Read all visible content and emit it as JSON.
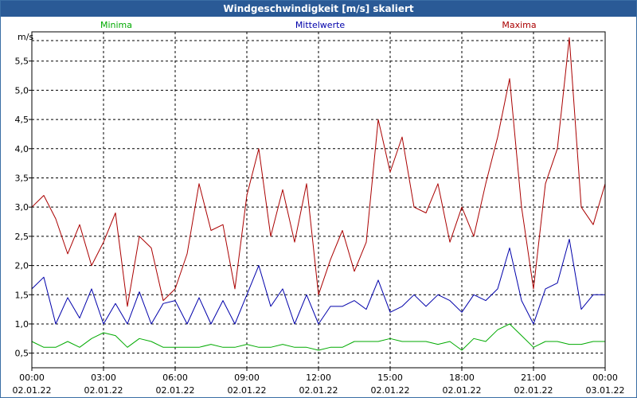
{
  "chart_data": {
    "type": "line",
    "title": "Windgeschwindigkeit [m/s] skaliert",
    "ylabel": "m/s",
    "ylim": [
      0.25,
      6.0
    ],
    "y_ticks": [
      {
        "value": 0.5,
        "label": "0,5"
      },
      {
        "value": 1.0,
        "label": "1,0"
      },
      {
        "value": 1.5,
        "label": "1,5"
      },
      {
        "value": 2.0,
        "label": "2,0"
      },
      {
        "value": 2.5,
        "label": "2,5"
      },
      {
        "value": 3.0,
        "label": "3,0"
      },
      {
        "value": 3.5,
        "label": "3,5"
      },
      {
        "value": 4.0,
        "label": "4,0"
      },
      {
        "value": 4.5,
        "label": "4,5"
      },
      {
        "value": 5.0,
        "label": "5,0"
      },
      {
        "value": 5.5,
        "label": "5,5"
      }
    ],
    "x_range_hours": [
      0,
      24
    ],
    "x_ticks": [
      {
        "hour": 0,
        "time": "00:00",
        "date": "02.01.22"
      },
      {
        "hour": 3,
        "time": "03:00",
        "date": "02.01.22"
      },
      {
        "hour": 6,
        "time": "06:00",
        "date": "02.01.22"
      },
      {
        "hour": 9,
        "time": "09:00",
        "date": "02.01.22"
      },
      {
        "hour": 12,
        "time": "12:00",
        "date": "02.01.22"
      },
      {
        "hour": 15,
        "time": "15:00",
        "date": "02.01.22"
      },
      {
        "hour": 18,
        "time": "18:00",
        "date": "02.01.22"
      },
      {
        "hour": 21,
        "time": "21:00",
        "date": "02.01.22"
      },
      {
        "hour": 24,
        "time": "00:00",
        "date": "03.01.22"
      }
    ],
    "grid": true,
    "series": [
      {
        "name": "Minima",
        "color": "#00aa00",
        "x_hours": [
          0,
          0.5,
          1,
          1.5,
          2,
          2.5,
          3,
          3.5,
          4,
          4.5,
          5,
          5.5,
          6,
          6.5,
          7,
          7.5,
          8,
          8.5,
          9,
          9.5,
          10,
          10.5,
          11,
          11.5,
          12,
          12.5,
          13,
          13.5,
          14,
          14.5,
          15,
          15.5,
          16,
          16.5,
          17,
          17.5,
          18,
          18.5,
          19,
          19.5,
          20,
          20.5,
          21,
          21.5,
          22,
          22.5,
          23,
          23.5,
          24
        ],
        "values": [
          0.7,
          0.6,
          0.6,
          0.7,
          0.6,
          0.75,
          0.85,
          0.8,
          0.6,
          0.75,
          0.7,
          0.6,
          0.6,
          0.6,
          0.6,
          0.65,
          0.6,
          0.6,
          0.65,
          0.6,
          0.6,
          0.65,
          0.6,
          0.6,
          0.55,
          0.6,
          0.6,
          0.7,
          0.7,
          0.7,
          0.75,
          0.7,
          0.7,
          0.7,
          0.65,
          0.7,
          0.55,
          0.75,
          0.7,
          0.9,
          1.0,
          0.8,
          0.6,
          0.7,
          0.7,
          0.65,
          0.65,
          0.7,
          0.7
        ]
      },
      {
        "name": "Mittelwerte",
        "color": "#0000aa",
        "x_hours": [
          0,
          0.5,
          1,
          1.5,
          2,
          2.5,
          3,
          3.5,
          4,
          4.5,
          5,
          5.5,
          6,
          6.5,
          7,
          7.5,
          8,
          8.5,
          9,
          9.5,
          10,
          10.5,
          11,
          11.5,
          12,
          12.5,
          13,
          13.5,
          14,
          14.5,
          15,
          15.5,
          16,
          16.5,
          17,
          17.5,
          18,
          18.5,
          19,
          19.5,
          20,
          20.5,
          21,
          21.5,
          22,
          22.5,
          23,
          23.5,
          24
        ],
        "values": [
          1.6,
          1.8,
          1.0,
          1.45,
          1.1,
          1.6,
          1.0,
          1.35,
          1.0,
          1.55,
          1.0,
          1.35,
          1.4,
          1.0,
          1.45,
          1.0,
          1.4,
          1.0,
          1.5,
          2.0,
          1.3,
          1.6,
          1.0,
          1.5,
          1.0,
          1.3,
          1.3,
          1.4,
          1.25,
          1.75,
          1.2,
          1.3,
          1.5,
          1.3,
          1.5,
          1.4,
          1.2,
          1.5,
          1.4,
          1.6,
          2.3,
          1.4,
          1.0,
          1.6,
          1.7,
          2.45,
          1.25,
          1.5,
          1.5
        ]
      },
      {
        "name": "Maxima",
        "color": "#aa0000",
        "x_hours": [
          0,
          0.5,
          1,
          1.5,
          2,
          2.5,
          3,
          3.5,
          4,
          4.5,
          5,
          5.5,
          6,
          6.5,
          7,
          7.5,
          8,
          8.5,
          9,
          9.5,
          10,
          10.5,
          11,
          11.5,
          12,
          12.5,
          13,
          13.5,
          14,
          14.5,
          15,
          15.5,
          16,
          16.5,
          17,
          17.5,
          18,
          18.5,
          19,
          19.5,
          20,
          20.5,
          21,
          21.5,
          22,
          22.5,
          23,
          23.5,
          24
        ],
        "values": [
          3.0,
          3.2,
          2.8,
          2.2,
          2.7,
          2.0,
          2.4,
          2.9,
          1.3,
          2.5,
          2.3,
          1.4,
          1.6,
          2.2,
          3.4,
          2.6,
          2.7,
          1.6,
          3.2,
          4.0,
          2.5,
          3.3,
          2.4,
          3.4,
          1.5,
          2.1,
          2.6,
          1.9,
          2.4,
          4.5,
          3.6,
          4.2,
          3.0,
          2.9,
          3.4,
          2.4,
          3.0,
          2.5,
          3.4,
          4.2,
          5.2,
          3.0,
          1.6,
          3.4,
          4.0,
          5.9,
          3.0,
          2.7,
          3.4
        ]
      }
    ]
  }
}
